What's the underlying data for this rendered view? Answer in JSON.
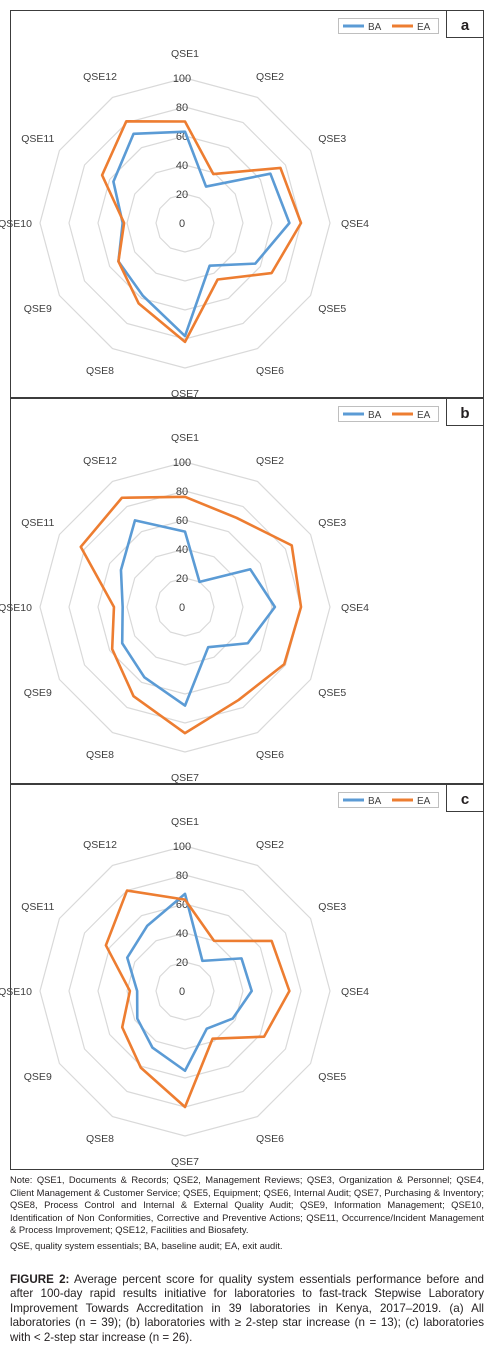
{
  "chart_data": [
    {
      "type": "radar",
      "panel_label": "a",
      "categories": [
        "QSE1",
        "QSE2",
        "QSE3",
        "QSE4",
        "QSE5",
        "QSE6",
        "QSE7",
        "QSE8",
        "QSE9",
        "QSE10",
        "QSE11",
        "QSE12"
      ],
      "ticks": [
        "0",
        "20",
        "40",
        "60",
        "80",
        "100"
      ],
      "rlim": [
        0,
        100
      ],
      "legend_position": "top-right",
      "series": [
        {
          "name": "BA",
          "color": "#5b9bd5",
          "values": [
            63,
            29,
            68,
            72,
            56,
            34,
            78,
            58,
            53,
            43,
            57,
            71
          ]
        },
        {
          "name": "EA",
          "color": "#ed7d31",
          "values": [
            70,
            39,
            76,
            80,
            69,
            45,
            82,
            64,
            53,
            42,
            66,
            81
          ]
        }
      ]
    },
    {
      "type": "radar",
      "panel_label": "b",
      "categories": [
        "QSE1",
        "QSE2",
        "QSE3",
        "QSE4",
        "QSE5",
        "QSE6",
        "QSE7",
        "QSE8",
        "QSE9",
        "QSE10",
        "QSE11",
        "QSE12"
      ],
      "ticks": [
        "0",
        "20",
        "40",
        "60",
        "80",
        "100"
      ],
      "rlim": [
        0,
        100
      ],
      "legend_position": "top-right",
      "series": [
        {
          "name": "BA",
          "color": "#5b9bd5",
          "values": [
            52,
            20,
            52,
            62,
            50,
            32,
            68,
            56,
            50,
            43,
            51,
            69
          ]
        },
        {
          "name": "EA",
          "color": "#ed7d31",
          "values": [
            76,
            71,
            85,
            80,
            79,
            74,
            87,
            71,
            58,
            49,
            83,
            87
          ]
        }
      ]
    },
    {
      "type": "radar",
      "panel_label": "c",
      "categories": [
        "QSE1",
        "QSE2",
        "QSE3",
        "QSE4",
        "QSE5",
        "QSE6",
        "QSE7",
        "QSE8",
        "QSE9",
        "QSE10",
        "QSE11",
        "QSE12"
      ],
      "ticks": [
        "0",
        "20",
        "40",
        "60",
        "80",
        "100"
      ],
      "rlim": [
        0,
        100
      ],
      "legend_position": "top-right",
      "series": [
        {
          "name": "BA",
          "color": "#5b9bd5",
          "values": [
            67,
            24,
            45,
            46,
            38,
            30,
            55,
            45,
            38,
            33,
            46,
            52
          ]
        },
        {
          "name": "EA",
          "color": "#ed7d31",
          "values": [
            63,
            40,
            69,
            72,
            63,
            38,
            80,
            61,
            50,
            38,
            63,
            80
          ]
        }
      ]
    }
  ],
  "notes": {
    "abbreviations": "Note: QSE1, Documents & Records; QSE2, Management Reviews; QSE3, Organization & Personnel; QSE4, Client Management & Customer Service; QSE5, Equipment; QSE6, Internal Audit; QSE7, Purchasing & Inventory; QSE8, Process Control and Internal & External Quality Audit; QSE9, Information Management; QSE10, Identification of Non Conformities, Corrective and Preventive Actions; QSE11, Occurrence/Incident Management & Process Improvement; QSE12, Facilities and Biosafety.",
    "acronyms": "QSE, quality system essentials; BA, baseline audit; EA, exit audit."
  },
  "caption": {
    "label": "FIGURE 2:",
    "text": " Average percent score for quality system essentials performance before and after 100-day rapid results initiative for laboratories to fast-track Stepwise Laboratory Improvement Towards Accreditation in 39 laboratories in Kenya, 2017–2019. (a) All laboratories (n = 39); (b) laboratories with ≥ 2-step star increase (n = 13); (c) laboratories with < 2-step star increase (n = 26)."
  }
}
